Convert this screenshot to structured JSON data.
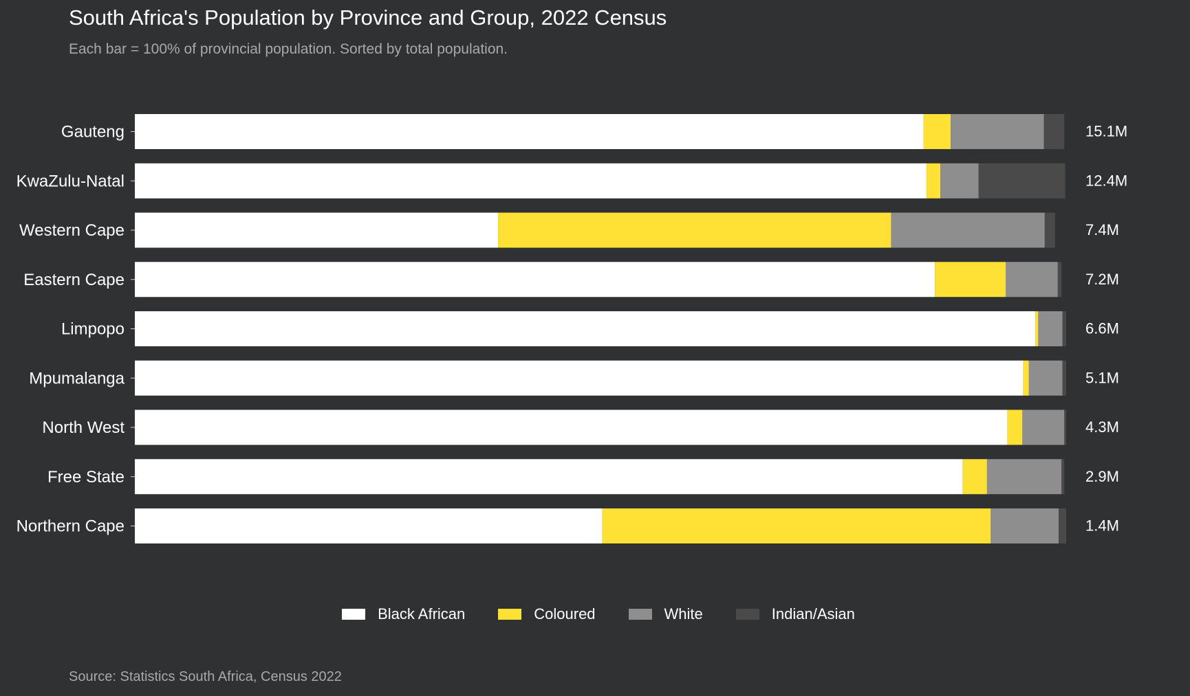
{
  "title": "South Africa's Population by Province and Group, 2022 Census",
  "subtitle": "Each bar = 100% of provincial population. Sorted by total population.",
  "source": "Source: Statistics South Africa, Census 2022",
  "colors": {
    "background": "#303133",
    "Black African": "#ffffff",
    "Coloured": "#ffe135",
    "White": "#8e8e8e",
    "Indian/Asian": "#4a4a4a"
  },
  "chart_data": {
    "type": "bar",
    "orientation": "horizontal",
    "stacked": "percent",
    "categories": [
      "Gauteng",
      "KwaZulu-Natal",
      "Western Cape",
      "Eastern Cape",
      "Limpopo",
      "Mpumalanga",
      "North West",
      "Free State",
      "Northern Cape"
    ],
    "totals": [
      "15.1M",
      "12.4M",
      "7.4M",
      "7.2M",
      "6.6M",
      "5.1M",
      "4.3M",
      "2.9M",
      "1.4M"
    ],
    "series": [
      {
        "name": "Black African",
        "color": "#ffffff",
        "values": [
          84.7,
          85.0,
          39.0,
          85.9,
          96.7,
          95.4,
          93.7,
          88.9,
          50.2
        ]
      },
      {
        "name": "Coloured",
        "color": "#ffe135",
        "values": [
          2.9,
          1.5,
          42.2,
          7.6,
          0.3,
          0.6,
          1.6,
          2.6,
          41.7
        ]
      },
      {
        "name": "White",
        "color": "#8e8e8e",
        "values": [
          10.0,
          4.1,
          16.5,
          5.6,
          2.6,
          3.6,
          4.5,
          8.0,
          7.3
        ]
      },
      {
        "name": "Indian/Asian",
        "color": "#4a4a4a",
        "values": [
          2.2,
          9.3,
          1.1,
          0.4,
          0.4,
          0.4,
          0.2,
          0.3,
          0.8
        ]
      }
    ],
    "legend": "bottom-center",
    "grid": false,
    "xlim": [
      0,
      100
    ]
  }
}
